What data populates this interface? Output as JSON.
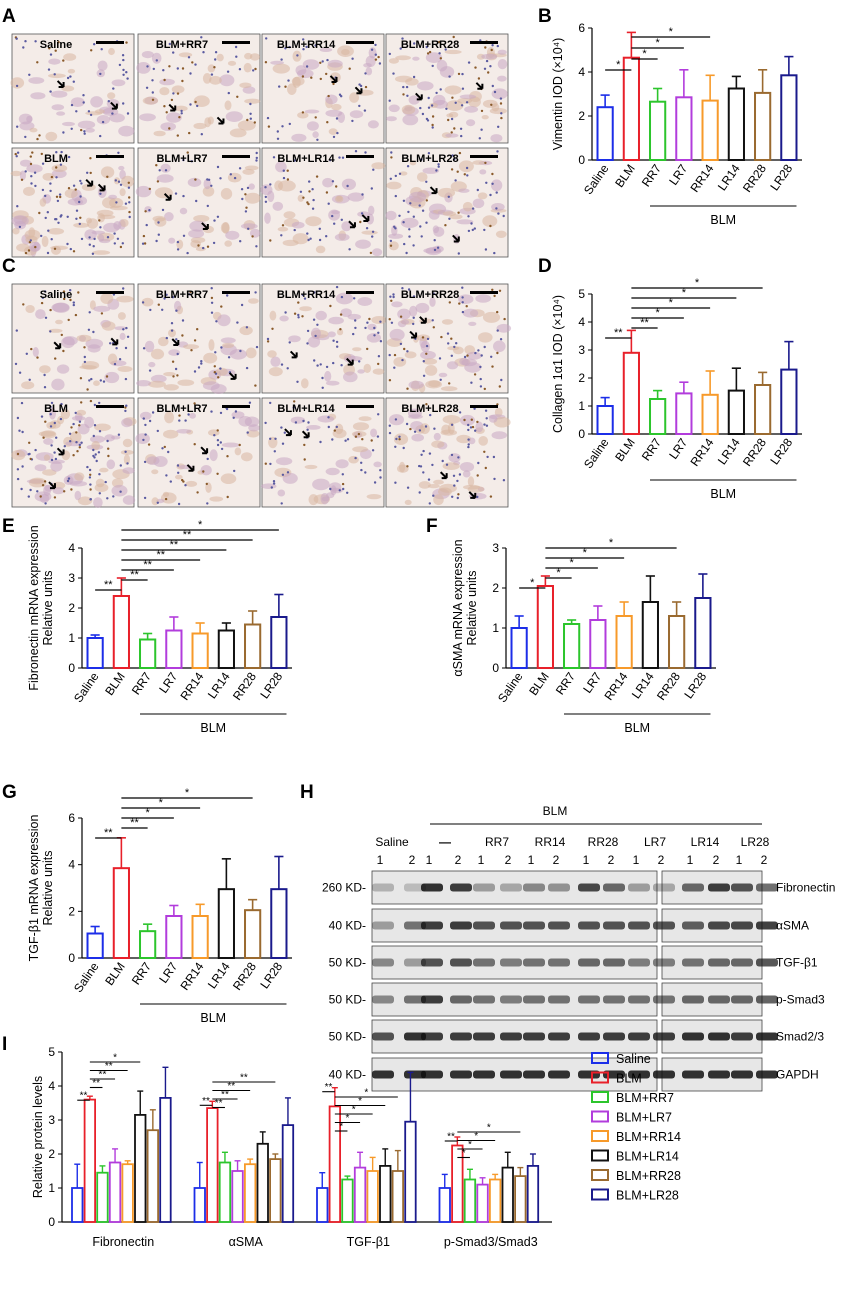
{
  "colors": {
    "Saline": "#1c2ee8",
    "BLM": "#e8202a",
    "RR7": "#2cc52c",
    "LR7": "#b23cdc",
    "RR14": "#f79a2a",
    "LR14": "#111111",
    "RR28": "#9a6a30",
    "LR28": "#1a1a8c"
  },
  "panels": {
    "A": "A",
    "B": "B",
    "C": "C",
    "D": "D",
    "E": "E",
    "F": "F",
    "G": "G",
    "H": "H",
    "I": "I"
  },
  "micro_A": {
    "row1": [
      "Saline",
      "BLM+RR7",
      "BLM+RR14",
      "BLM+RR28"
    ],
    "row2": [
      "BLM",
      "BLM+LR7",
      "BLM+LR14",
      "BLM+LR28"
    ]
  },
  "micro_C": {
    "row1": [
      "Saline",
      "BLM+RR7",
      "BLM+RR14",
      "BLM+RR28"
    ],
    "row2": [
      "BLM",
      "BLM+LR7",
      "BLM+LR14",
      "BLM+LR28"
    ]
  },
  "blot_H": {
    "blm_label": "BLM",
    "groups": [
      "Saline",
      "—",
      "RR7",
      "RR14",
      "RR28",
      "LR7",
      "LR14",
      "LR28"
    ],
    "lane_numbers": [
      "1",
      "2"
    ],
    "kd_labels": [
      "260 KD-",
      "40 KD-",
      "50 KD-",
      "50 KD-",
      "50 KD-",
      "40 KD-"
    ],
    "proteins": [
      "Fibronectin",
      "αSMA",
      "TGF-β1",
      "p-Smad3",
      "Smad2/3",
      "GAPDH"
    ]
  },
  "chart_data": [
    {
      "id": "B",
      "type": "bar",
      "categories": [
        "Saline",
        "BLM",
        "RR7",
        "LR7",
        "RR14",
        "LR14",
        "RR28",
        "LR28"
      ],
      "values": [
        2.4,
        4.65,
        2.65,
        2.85,
        2.7,
        3.25,
        3.05,
        3.85
      ],
      "errors": [
        0.55,
        1.15,
        0.6,
        1.25,
        1.15,
        0.55,
        1.05,
        0.85
      ],
      "ylabel": "Vimentin IOD (×10⁴)",
      "ylim": [
        0,
        6
      ],
      "yticks": [
        "0",
        "2",
        "4",
        "6"
      ],
      "group_label": "BLM",
      "significance": [
        {
          "from": 0,
          "to": 1,
          "label": "*"
        },
        {
          "from": 1,
          "to": 2,
          "label": "*"
        },
        {
          "from": 1,
          "to": 3,
          "label": "*"
        },
        {
          "from": 1,
          "to": 4,
          "label": "*"
        }
      ]
    },
    {
      "id": "D",
      "type": "bar",
      "categories": [
        "Saline",
        "BLM",
        "RR7",
        "LR7",
        "RR14",
        "LR14",
        "RR28",
        "LR28"
      ],
      "values": [
        1.0,
        2.9,
        1.25,
        1.45,
        1.4,
        1.55,
        1.75,
        2.3
      ],
      "errors": [
        0.3,
        0.8,
        0.3,
        0.4,
        0.85,
        0.8,
        0.45,
        1.0
      ],
      "ylabel": "Collagen 1α1 IOD (×10⁴)",
      "ylim": [
        0,
        5
      ],
      "yticks": [
        "0",
        "1",
        "2",
        "3",
        "4",
        "5"
      ],
      "group_label": "BLM",
      "significance": [
        {
          "from": 0,
          "to": 1,
          "label": "**"
        },
        {
          "from": 1,
          "to": 2,
          "label": "**"
        },
        {
          "from": 1,
          "to": 3,
          "label": "*"
        },
        {
          "from": 1,
          "to": 4,
          "label": "*"
        },
        {
          "from": 1,
          "to": 5,
          "label": "*"
        },
        {
          "from": 1,
          "to": 6,
          "label": "*"
        }
      ]
    },
    {
      "id": "E",
      "type": "bar",
      "categories": [
        "Saline",
        "BLM",
        "RR7",
        "LR7",
        "RR14",
        "LR14",
        "RR28",
        "LR28"
      ],
      "values": [
        1.0,
        2.4,
        0.95,
        1.25,
        1.15,
        1.25,
        1.45,
        1.7
      ],
      "errors": [
        0.1,
        0.6,
        0.2,
        0.45,
        0.35,
        0.25,
        0.45,
        0.75
      ],
      "ylabel": "Fibronectin mRNA expression\nRelative units",
      "ylim": [
        0,
        4
      ],
      "yticks": [
        "0",
        "1",
        "2",
        "3",
        "4"
      ],
      "group_label": "BLM",
      "significance": [
        {
          "from": 0,
          "to": 1,
          "label": "**"
        },
        {
          "from": 1,
          "to": 2,
          "label": "**"
        },
        {
          "from": 1,
          "to": 3,
          "label": "**"
        },
        {
          "from": 1,
          "to": 4,
          "label": "**"
        },
        {
          "from": 1,
          "to": 5,
          "label": "**"
        },
        {
          "from": 1,
          "to": 6,
          "label": "**"
        },
        {
          "from": 1,
          "to": 7,
          "label": "*"
        }
      ]
    },
    {
      "id": "F",
      "type": "bar",
      "categories": [
        "Saline",
        "BLM",
        "RR7",
        "LR7",
        "RR14",
        "LR14",
        "RR28",
        "LR28"
      ],
      "values": [
        1.0,
        2.05,
        1.1,
        1.2,
        1.3,
        1.65,
        1.3,
        1.75
      ],
      "errors": [
        0.3,
        0.25,
        0.1,
        0.35,
        0.35,
        0.65,
        0.35,
        0.6
      ],
      "ylabel": "αSMA mRNA expression\nRelative units",
      "ylim": [
        0,
        3
      ],
      "yticks": [
        "0",
        "1",
        "2",
        "3"
      ],
      "group_label": "BLM",
      "significance": [
        {
          "from": 0,
          "to": 1,
          "label": "*"
        },
        {
          "from": 1,
          "to": 2,
          "label": "*"
        },
        {
          "from": 1,
          "to": 3,
          "label": "*"
        },
        {
          "from": 1,
          "to": 4,
          "label": "*"
        },
        {
          "from": 1,
          "to": 6,
          "label": "*"
        }
      ]
    },
    {
      "id": "G",
      "type": "bar",
      "categories": [
        "Saline",
        "BLM",
        "RR7",
        "LR7",
        "RR14",
        "LR14",
        "RR28",
        "LR28"
      ],
      "values": [
        1.05,
        3.85,
        1.15,
        1.8,
        1.8,
        2.95,
        2.05,
        2.95
      ],
      "errors": [
        0.3,
        1.3,
        0.3,
        0.45,
        0.5,
        1.3,
        0.45,
        1.4
      ],
      "ylabel": "TGF-β1 mRNA expression\nRelative units",
      "ylim": [
        0,
        6
      ],
      "yticks": [
        "0",
        "2",
        "4",
        "6"
      ],
      "group_label": "BLM",
      "significance": [
        {
          "from": 0,
          "to": 1,
          "label": "**"
        },
        {
          "from": 1,
          "to": 2,
          "label": "**"
        },
        {
          "from": 1,
          "to": 3,
          "label": "*"
        },
        {
          "from": 1,
          "to": 4,
          "label": "*"
        },
        {
          "from": 1,
          "to": 6,
          "label": "*"
        }
      ]
    },
    {
      "id": "I",
      "type": "bar",
      "categories": [
        "Fibronectin",
        "αSMA",
        "TGF-β1",
        "p-Smad3/Smad3"
      ],
      "series": [
        {
          "name": "Saline",
          "values": [
            1.0,
            1.0,
            1.0,
            1.0
          ],
          "errors": [
            0.7,
            0.75,
            0.45,
            0.4
          ]
        },
        {
          "name": "BLM",
          "values": [
            3.6,
            3.35,
            3.4,
            2.25
          ],
          "errors": [
            0.1,
            0.2,
            0.55,
            0.25
          ]
        },
        {
          "name": "BLM+RR7",
          "values": [
            1.45,
            1.75,
            1.25,
            1.25
          ],
          "errors": [
            0.2,
            0.3,
            0.1,
            0.3
          ]
        },
        {
          "name": "BLM+LR7",
          "values": [
            1.75,
            1.5,
            1.6,
            1.1
          ],
          "errors": [
            0.4,
            0.3,
            0.45,
            0.2
          ]
        },
        {
          "name": "BLM+RR14",
          "values": [
            1.7,
            1.7,
            1.5,
            1.25
          ],
          "errors": [
            0.1,
            0.15,
            0.4,
            0.15
          ]
        },
        {
          "name": "BLM+LR14",
          "values": [
            3.15,
            2.3,
            1.65,
            1.6
          ],
          "errors": [
            0.7,
            0.35,
            0.5,
            0.45
          ]
        },
        {
          "name": "BLM+RR28",
          "values": [
            2.7,
            1.85,
            1.5,
            1.35
          ],
          "errors": [
            0.6,
            0.15,
            0.6,
            0.25
          ]
        },
        {
          "name": "BLM+LR28",
          "values": [
            3.65,
            2.85,
            2.95,
            1.65
          ],
          "errors": [
            0.9,
            0.8,
            1.45,
            0.35
          ]
        }
      ],
      "ylabel": "Relative protein levels",
      "ylim": [
        0,
        5
      ],
      "yticks": [
        "0",
        "1",
        "2",
        "3",
        "4",
        "5"
      ],
      "legend_position": "right",
      "significance": [
        {
          "group": 0,
          "from": 0,
          "to": 1,
          "label": "**"
        },
        {
          "group": 0,
          "from": 1,
          "to": 2,
          "label": "**"
        },
        {
          "group": 0,
          "from": 1,
          "to": 3,
          "label": "**"
        },
        {
          "group": 0,
          "from": 1,
          "to": 4,
          "label": "**"
        },
        {
          "group": 0,
          "from": 1,
          "to": 5,
          "label": "*"
        },
        {
          "group": 1,
          "from": 0,
          "to": 1,
          "label": "**"
        },
        {
          "group": 1,
          "from": 1,
          "to": 2,
          "label": "**"
        },
        {
          "group": 1,
          "from": 1,
          "to": 3,
          "label": "**"
        },
        {
          "group": 1,
          "from": 1,
          "to": 4,
          "label": "**"
        },
        {
          "group": 1,
          "from": 1,
          "to": 6,
          "label": "**"
        },
        {
          "group": 2,
          "from": 0,
          "to": 1,
          "label": "**"
        },
        {
          "group": 2,
          "from": 1,
          "to": 2,
          "label": "*"
        },
        {
          "group": 2,
          "from": 1,
          "to": 3,
          "label": "*"
        },
        {
          "group": 2,
          "from": 1,
          "to": 4,
          "label": "*"
        },
        {
          "group": 2,
          "from": 1,
          "to": 5,
          "label": "*"
        },
        {
          "group": 2,
          "from": 1,
          "to": 6,
          "label": "*"
        },
        {
          "group": 3,
          "from": 0,
          "to": 1,
          "label": "**"
        },
        {
          "group": 3,
          "from": 1,
          "to": 2,
          "label": "*"
        },
        {
          "group": 3,
          "from": 1,
          "to": 3,
          "label": "*"
        },
        {
          "group": 3,
          "from": 1,
          "to": 4,
          "label": "*"
        },
        {
          "group": 3,
          "from": 1,
          "to": 6,
          "label": "*"
        }
      ]
    }
  ]
}
